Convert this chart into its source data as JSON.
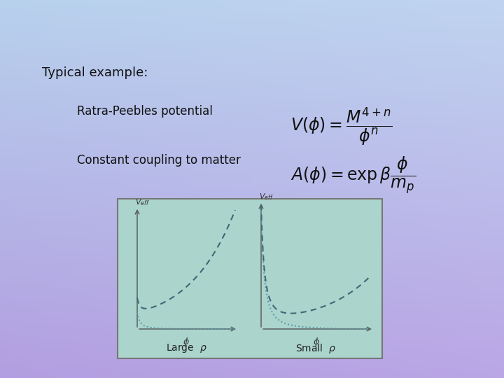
{
  "title_text": "Typical example:",
  "label1_text": "Ratra-Peebles potential",
  "label2_text": "Constant coupling to matter",
  "panel_bg": "#aad4cc",
  "panel_border": "#888888",
  "curve_color_dash": "#446677",
  "curve_color_dot": "#5599aa",
  "text_color": "#111111",
  "bg_tl": [
    0.72,
    0.82,
    0.93
  ],
  "bg_tr": [
    0.75,
    0.83,
    0.94
  ],
  "bg_bl": [
    0.7,
    0.62,
    0.88
  ],
  "bg_br": [
    0.73,
    0.65,
    0.9
  ]
}
